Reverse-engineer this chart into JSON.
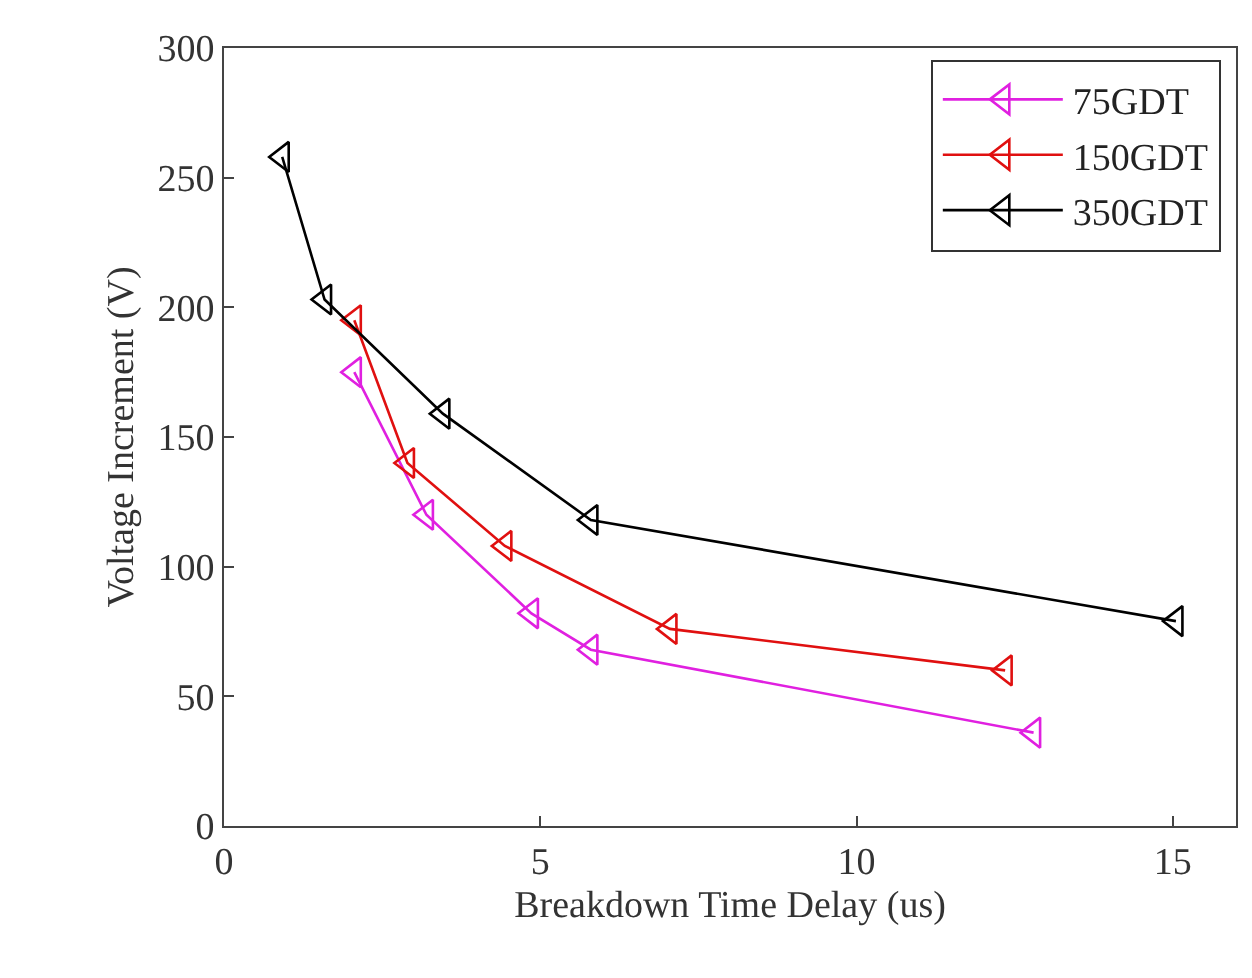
{
  "chart_data": {
    "type": "line",
    "xlabel": "Breakdown Time Delay (us)",
    "ylabel": "Voltage Increment (V)",
    "xlim": [
      0,
      16
    ],
    "xticks": [
      0,
      5,
      10,
      15
    ],
    "ylim": [
      0,
      300
    ],
    "yticks": [
      0,
      50,
      100,
      150,
      200,
      250,
      300
    ],
    "legend": "top right",
    "marker": "triangle",
    "line_style": "solid",
    "series": [
      {
        "name": "75GDT",
        "color": "#e020e0",
        "x": [
          2.06,
          3.2,
          4.86,
          5.8,
          12.8
        ],
        "values": [
          175,
          120,
          82,
          68,
          36
        ]
      },
      {
        "name": "150GDT",
        "color": "#e01010",
        "x": [
          2.06,
          2.9,
          4.44,
          7.05,
          12.35
        ],
        "values": [
          195,
          140,
          108,
          76,
          60
        ]
      },
      {
        "name": "350GDT",
        "color": "#000000",
        "x": [
          0.92,
          1.59,
          3.46,
          5.8,
          15.05
        ],
        "values": [
          258,
          203,
          159,
          118,
          79
        ]
      }
    ]
  }
}
